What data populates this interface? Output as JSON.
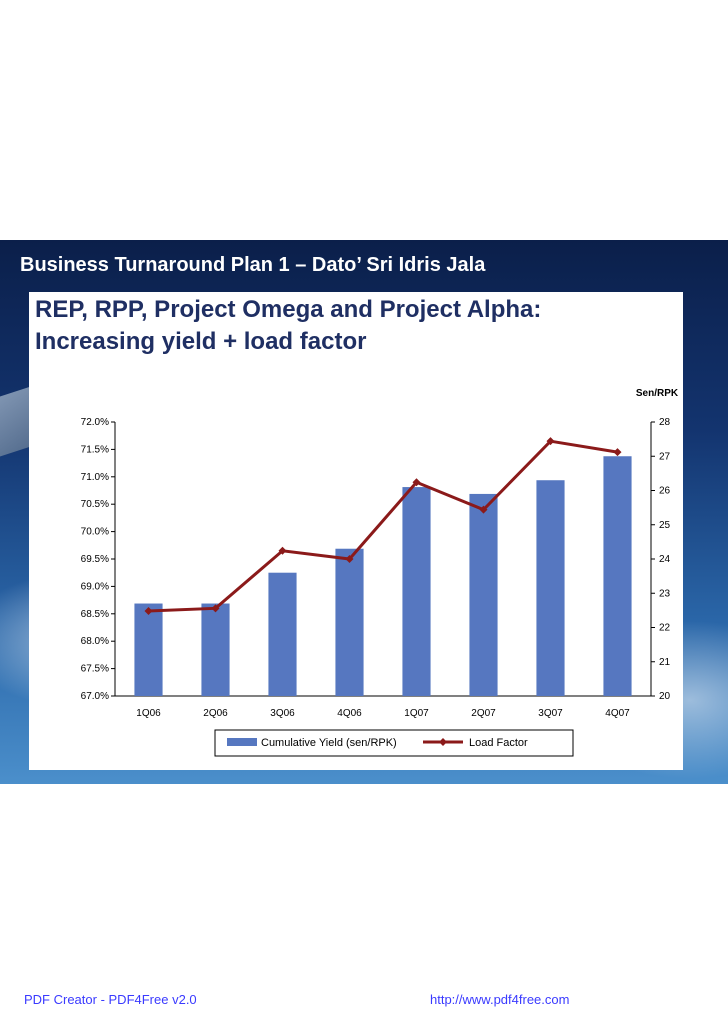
{
  "slide": {
    "header": "Business Turnaround Plan 1 – Dato’ Sri Idris Jala",
    "title_line1": "REP, RPP, Project Omega and Project Alpha:",
    "title_line2": "Increasing yield + load factor"
  },
  "footer": {
    "left": "PDF Creator - PDF4Free v2.0",
    "right": "http://www.pdf4free.com"
  },
  "chart_data": {
    "type": "bar",
    "categories": [
      "1Q06",
      "2Q06",
      "3Q06",
      "4Q06",
      "1Q07",
      "2Q07",
      "3Q07",
      "4Q07"
    ],
    "series": [
      {
        "name": "Cumulative Yield (sen/RPK)",
        "type": "bar",
        "axis": "right",
        "values": [
          22.7,
          22.7,
          23.6,
          24.3,
          26.1,
          25.9,
          26.3,
          27.0
        ]
      },
      {
        "name": "Load Factor",
        "type": "line",
        "axis": "left",
        "values": [
          68.55,
          68.6,
          69.65,
          69.5,
          70.9,
          70.4,
          71.65,
          71.45
        ]
      }
    ],
    "left_axis": {
      "min": 67.0,
      "max": 72.0,
      "step": 0.5,
      "ticks": [
        "72.0%",
        "71.5%",
        "71.0%",
        "70.5%",
        "70.0%",
        "69.5%",
        "69.0%",
        "68.5%",
        "68.0%",
        "67.5%",
        "67.0%"
      ]
    },
    "right_axis": {
      "min": 20,
      "max": 28,
      "step": 1,
      "label": "Sen/RPK",
      "ticks": [
        "28",
        "27",
        "26",
        "25",
        "24",
        "23",
        "22",
        "21",
        "20"
      ]
    },
    "colors": {
      "bar": "#5677c0",
      "line": "#8b1a1a"
    },
    "legend": [
      "Cumulative Yield (sen/RPK)",
      "Load Factor"
    ]
  }
}
